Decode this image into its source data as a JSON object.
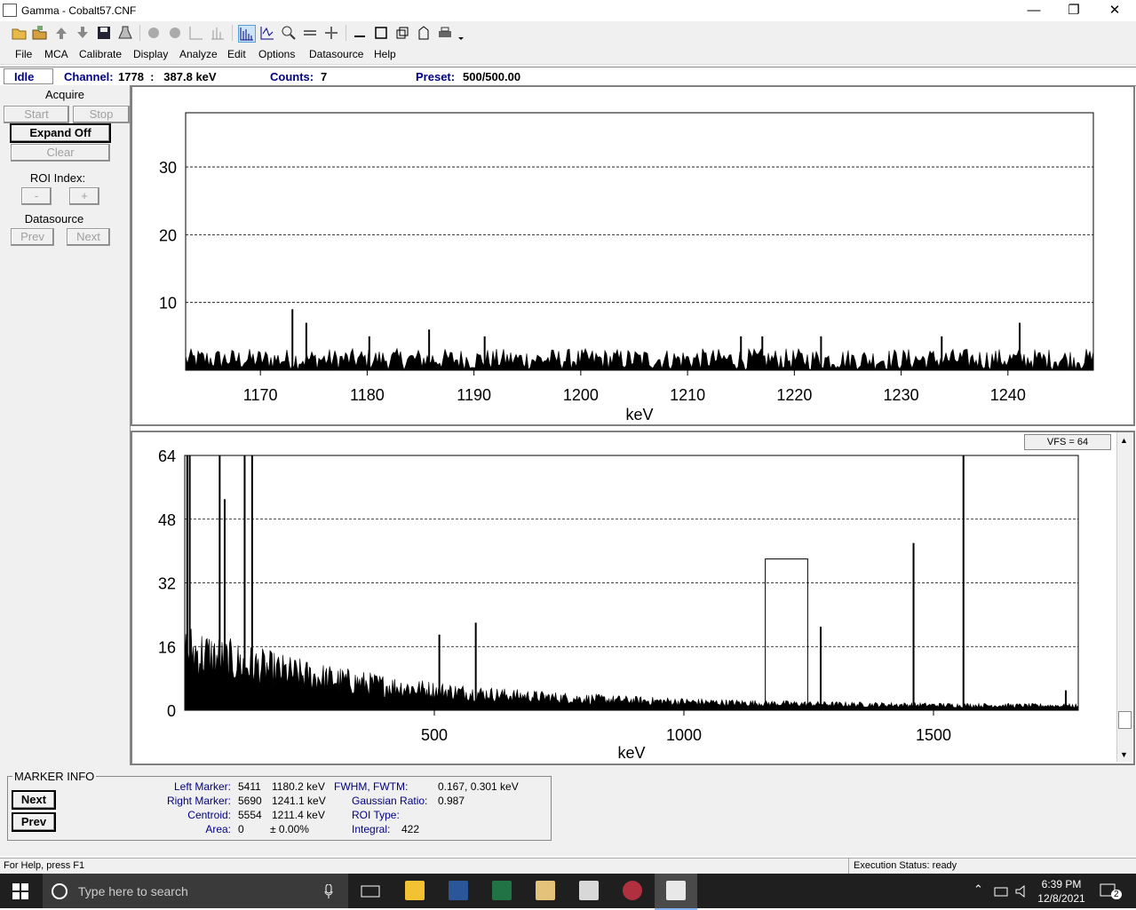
{
  "window": {
    "title": "Gamma - Cobalt57.CNF",
    "min": "—",
    "max": "❐",
    "close": "✕"
  },
  "menu": [
    "File",
    "MCA",
    "Calibrate",
    "Display",
    "Analyze",
    "Edit",
    "Options",
    "Datasource",
    "Help"
  ],
  "status_strip": {
    "state": "Idle",
    "channel_label": "Channel:",
    "channel_value": "1778  :   387.8 keV",
    "counts_label": "Counts:",
    "counts_value": "7",
    "preset_label": "Preset:",
    "preset_value": "500/500.00"
  },
  "left_panel": {
    "acquire_label": "Acquire",
    "start": "Start",
    "stop": "Stop",
    "expand": "Expand Off",
    "clear": "Clear",
    "roi_label": "ROI Index:",
    "roi_minus": "-",
    "roi_plus": "+",
    "datasource_label": "Datasource",
    "prev": "Prev",
    "next": "Next"
  },
  "vfs_label": "VFS = 64",
  "chart_data": [
    {
      "type": "bar",
      "panel": "expanded",
      "xlabel": "keV",
      "xlim": [
        1163,
        1248
      ],
      "ylim": [
        0,
        38
      ],
      "x_ticks": [
        1170,
        1180,
        1190,
        1200,
        1210,
        1220,
        1230,
        1240
      ],
      "y_ticks": [
        10,
        20,
        30
      ],
      "grid": "horizontal dashed",
      "peaks": [
        {
          "x": 1173.0,
          "y": 9
        },
        {
          "x": 1174.3,
          "y": 7
        },
        {
          "x": 1180.2,
          "y": 5
        },
        {
          "x": 1185.8,
          "y": 6
        },
        {
          "x": 1191.0,
          "y": 5
        },
        {
          "x": 1215.0,
          "y": 5
        },
        {
          "x": 1217.0,
          "y": 5
        },
        {
          "x": 1222.5,
          "y": 5
        },
        {
          "x": 1233.8,
          "y": 5
        },
        {
          "x": 1241.1,
          "y": 7
        }
      ],
      "baseline_range": [
        0,
        4
      ]
    },
    {
      "type": "bar",
      "panel": "full",
      "xlabel": "keV",
      "xlim": [
        0,
        1790
      ],
      "ylim": [
        0,
        64
      ],
      "x_ticks": [
        500,
        1000,
        1500
      ],
      "y_ticks": [
        0,
        16,
        32,
        48,
        64
      ],
      "grid": "horizontal dashed",
      "peaks": [
        {
          "x": 5,
          "y": 64
        },
        {
          "x": 10,
          "y": 64
        },
        {
          "x": 70,
          "y": 64
        },
        {
          "x": 80,
          "y": 53
        },
        {
          "x": 120,
          "y": 64
        },
        {
          "x": 135,
          "y": 64
        },
        {
          "x": 510,
          "y": 19
        },
        {
          "x": 583,
          "y": 22
        },
        {
          "x": 1274,
          "y": 21
        },
        {
          "x": 1460,
          "y": 42
        },
        {
          "x": 1560,
          "y": 64
        },
        {
          "x": 1765,
          "y": 5
        }
      ],
      "roi_box": {
        "x_start": 1163,
        "x_end": 1248,
        "y_top": 38
      }
    }
  ],
  "marker_info": {
    "title": "MARKER INFO",
    "next": "Next",
    "prev": "Prev",
    "left_marker_label": "Left Marker:",
    "left_marker_ch": "5411",
    "left_marker_kev": "1180.2 keV",
    "right_marker_label": "Right Marker:",
    "right_marker_ch": "5690",
    "right_marker_kev": "1241.1 keV",
    "centroid_label": "Centroid:",
    "centroid_ch": "5554",
    "centroid_kev": "1211.4 keV",
    "area_label": "Area:",
    "area_value": "0",
    "area_pct": "± 0.00%",
    "fwhm_label": "FWHM, FWTM:",
    "fwhm_value": "0.167, 0.301 keV",
    "gauss_label": "Gaussian Ratio:",
    "gauss_value": "0.987",
    "roi_type_label": "ROI Type:",
    "roi_type_value": "",
    "integral_label": "Integral:",
    "integral_value": "422"
  },
  "statusbar": {
    "help": "For Help, press F1",
    "exec": "Execution Status: ready"
  },
  "taskbar": {
    "search_placeholder": "Type here to search",
    "time": "6:39 PM",
    "date": "12/8/2021",
    "notif_count": "2"
  }
}
